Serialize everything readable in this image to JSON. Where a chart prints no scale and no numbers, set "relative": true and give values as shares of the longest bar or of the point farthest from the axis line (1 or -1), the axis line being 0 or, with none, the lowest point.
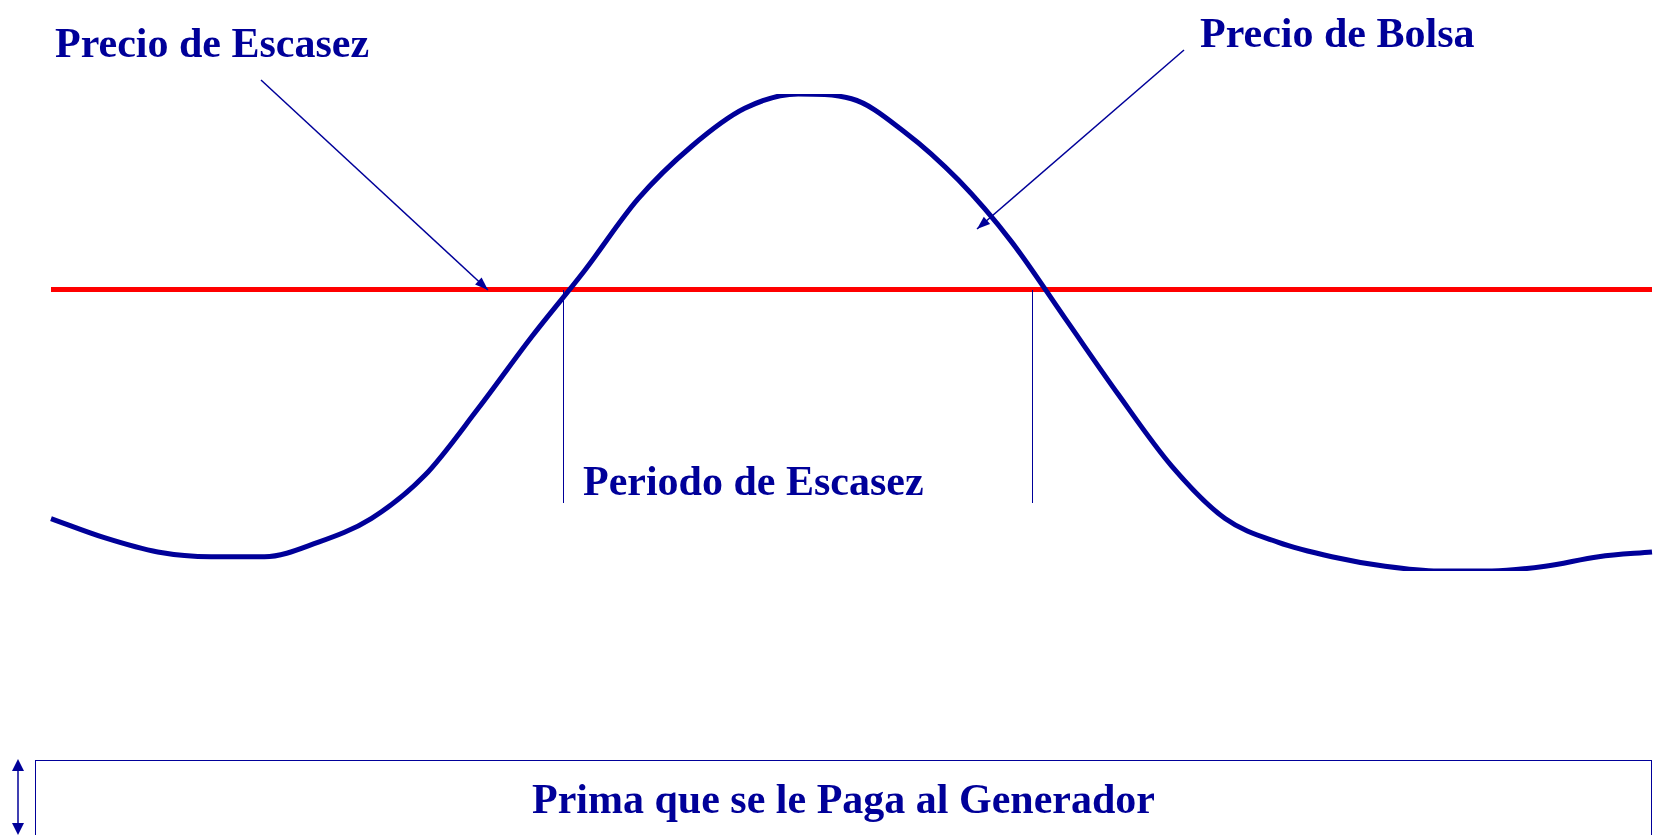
{
  "chart_data": {
    "type": "line",
    "relative": true,
    "legend": false,
    "marker": "none",
    "categories": [
      null,
      null,
      null,
      null,
      null,
      null,
      null,
      null,
      null,
      null,
      null,
      null,
      null,
      null,
      null,
      null,
      null,
      null,
      null,
      null,
      null,
      null,
      null,
      null,
      null,
      null,
      null,
      null,
      null,
      null,
      null
    ],
    "series": [
      {
        "name": "Precio de Bolsa",
        "color": "#000099",
        "values": [
          0.11,
          0.07,
          0.04,
          0.03,
          0.03,
          0.06,
          0.11,
          0.2,
          0.34,
          0.49,
          0.63,
          0.78,
          0.89,
          0.97,
          1.0,
          0.99,
          0.92,
          0.82,
          0.69,
          0.53,
          0.37,
          0.22,
          0.11,
          0.06,
          0.03,
          0.01,
          0,
          0,
          0.01,
          0.03,
          0.04
        ]
      },
      {
        "name": "Precio de Escasez",
        "color": "#ff0000",
        "values": [
          0.59,
          0.59,
          0.59,
          0.59,
          0.59,
          0.59,
          0.59,
          0.59,
          0.59,
          0.59,
          0.59,
          0.59,
          0.59,
          0.59,
          0.59,
          0.59,
          0.59,
          0.59,
          0.59,
          0.59,
          0.59,
          0.59,
          0.59,
          0.59,
          0.59,
          0.59,
          0.59,
          0.59,
          0.59,
          0.59,
          0.59
        ]
      }
    ],
    "annotations": [
      "Periodo de Escasez",
      "Prima que se le Paga al Generador"
    ]
  }
}
